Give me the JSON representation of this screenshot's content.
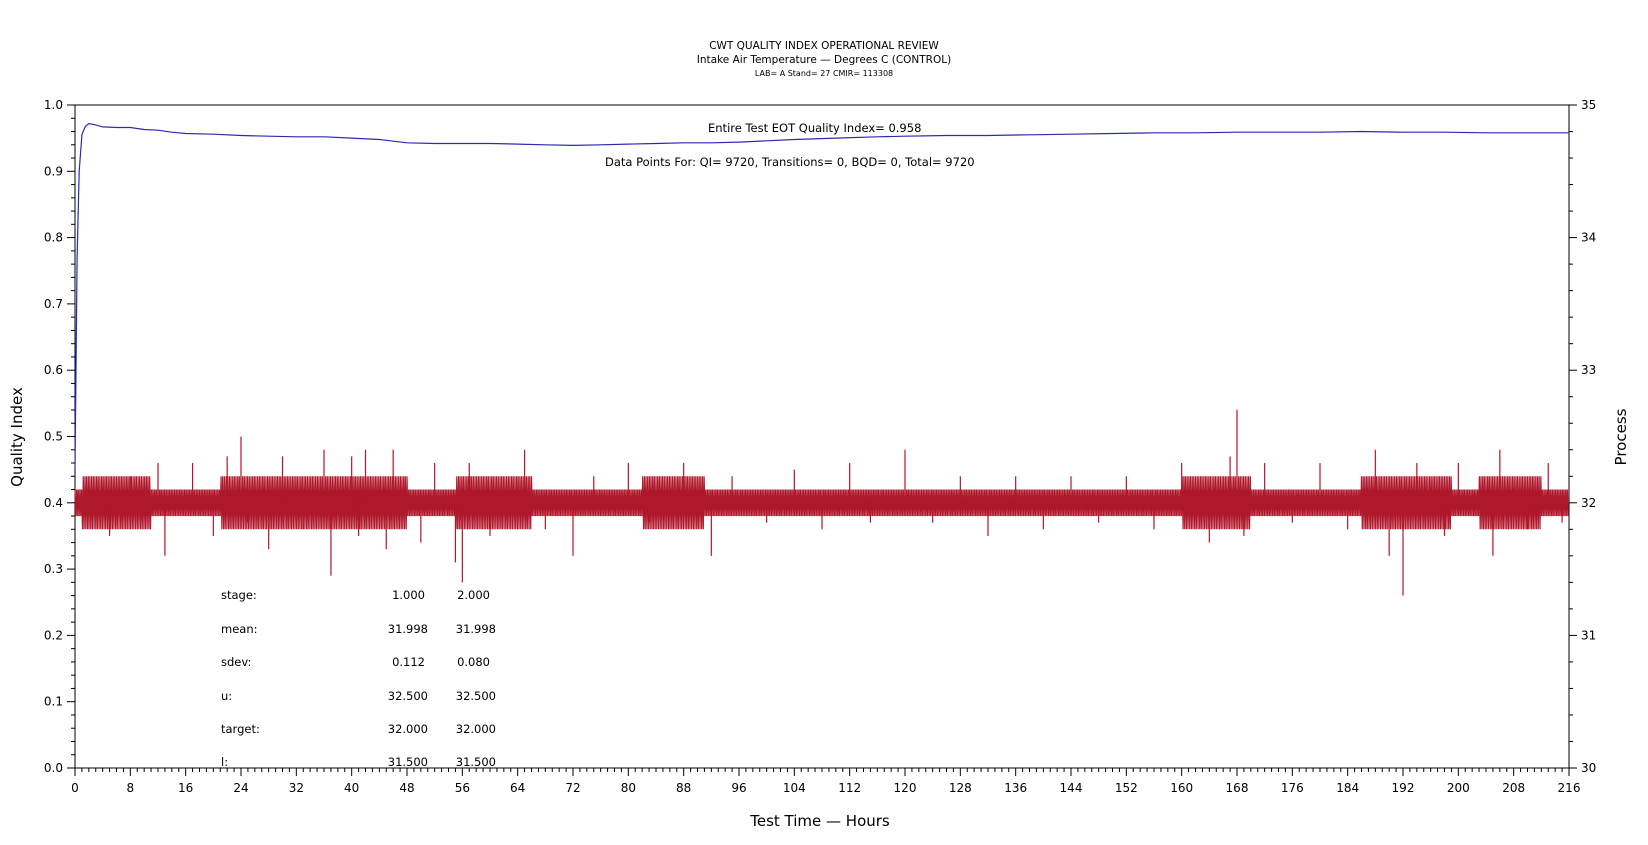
{
  "chart_data": {
    "type": "line",
    "title": "CWT QUALITY INDEX OPERATIONAL REVIEW",
    "subtitle": "Intake Air Temperature — Degrees C (CONTROL)",
    "subtitle2": "LAB= A Stand= 27 CMIR= 113308",
    "xlabel": "Test Time — Hours",
    "ylabel": "Quality Index",
    "y2label": "Process",
    "xlim": [
      0,
      216
    ],
    "ylim": [
      0,
      1
    ],
    "y2lim": [
      30,
      35
    ],
    "grid": false,
    "x_ticks": [
      "0",
      "8",
      "16",
      "24",
      "32",
      "40",
      "48",
      "56",
      "64",
      "72",
      "80",
      "88",
      "96",
      "104",
      "112",
      "120",
      "128",
      "136",
      "144",
      "152",
      "160",
      "168",
      "176",
      "184",
      "192",
      "200",
      "208",
      "216"
    ],
    "y_ticks": [
      "0.0",
      "0.1",
      "0.2",
      "0.3",
      "0.4",
      "0.5",
      "0.6",
      "0.7",
      "0.8",
      "0.9",
      "1.0"
    ],
    "y2_ticks": [
      "30",
      "31",
      "32",
      "33",
      "34",
      "35"
    ],
    "colors": {
      "quality_index": "#2b2bb0",
      "process": "#b0182c"
    },
    "annotations": {
      "eot": "Entire Test EOT Quality Index=   0.958",
      "points": "Data Points For: QI=  9720, Transitions=      0, BQD=      0, Total=  9720"
    },
    "stats": {
      "headers": [
        "stage:",
        "1.000",
        "2.000"
      ],
      "rows": [
        [
          "mean:",
          "31.998",
          "31.998"
        ],
        [
          "sdev:",
          "0.112",
          "0.080"
        ],
        [
          "u:",
          "32.500",
          "32.500"
        ],
        [
          "target:",
          "32.000",
          "32.000"
        ],
        [
          "l:",
          "31.500",
          "31.500"
        ]
      ]
    },
    "series": [
      {
        "axis": "left",
        "x": [
          0,
          0.3,
          0.6,
          1,
          1.5,
          2,
          3,
          4,
          6,
          8,
          10,
          12,
          14,
          16,
          20,
          24,
          28,
          32,
          36,
          40,
          44,
          48,
          52,
          56,
          60,
          64,
          68,
          72,
          76,
          80,
          84,
          88,
          92,
          96,
          100,
          104,
          110,
          116,
          120,
          126,
          132,
          138,
          144,
          150,
          156,
          162,
          168,
          174,
          180,
          186,
          192,
          198,
          204,
          210,
          216
        ],
        "values": [
          0.45,
          0.77,
          0.9,
          0.955,
          0.968,
          0.972,
          0.97,
          0.967,
          0.966,
          0.966,
          0.963,
          0.962,
          0.959,
          0.957,
          0.956,
          0.954,
          0.953,
          0.952,
          0.952,
          0.95,
          0.948,
          0.943,
          0.942,
          0.942,
          0.942,
          0.941,
          0.94,
          0.939,
          0.94,
          0.941,
          0.942,
          0.943,
          0.943,
          0.944,
          0.946,
          0.948,
          0.95,
          0.952,
          0.953,
          0.954,
          0.954,
          0.955,
          0.956,
          0.957,
          0.958,
          0.958,
          0.959,
          0.959,
          0.959,
          0.96,
          0.959,
          0.959,
          0.958,
          0.958,
          0.958
        ]
      },
      {
        "axis": "right",
        "band_upper": 32.1,
        "band_lower": 31.9,
        "wide_band_upper": 32.2,
        "wide_band_lower": 31.8,
        "wide_segments": [
          [
            1,
            11
          ],
          [
            21,
            48
          ],
          [
            55,
            66
          ],
          [
            82,
            91
          ],
          [
            160,
            170
          ],
          [
            186,
            199
          ],
          [
            203,
            212
          ]
        ],
        "spikes": [
          [
            2,
            32.1
          ],
          [
            5,
            31.75
          ],
          [
            8,
            32.2
          ],
          [
            9,
            31.85
          ],
          [
            12,
            32.3
          ],
          [
            13,
            31.6
          ],
          [
            17,
            32.3
          ],
          [
            20,
            31.75
          ],
          [
            22,
            32.35
          ],
          [
            24,
            32.5
          ],
          [
            25,
            31.85
          ],
          [
            28,
            31.65
          ],
          [
            30,
            32.35
          ],
          [
            33,
            31.8
          ],
          [
            36,
            32.4
          ],
          [
            37,
            31.45
          ],
          [
            40,
            32.35
          ],
          [
            41,
            31.75
          ],
          [
            42,
            32.4
          ],
          [
            45,
            31.65
          ],
          [
            46,
            32.4
          ],
          [
            50,
            31.7
          ],
          [
            52,
            32.3
          ],
          [
            55,
            31.55
          ],
          [
            56,
            31.4
          ],
          [
            57,
            32.3
          ],
          [
            60,
            31.75
          ],
          [
            65,
            32.4
          ],
          [
            68,
            31.8
          ],
          [
            72,
            31.6
          ],
          [
            75,
            32.2
          ],
          [
            80,
            32.3
          ],
          [
            83,
            31.85
          ],
          [
            88,
            32.3
          ],
          [
            92,
            31.6
          ],
          [
            95,
            32.2
          ],
          [
            100,
            31.85
          ],
          [
            104,
            32.25
          ],
          [
            108,
            31.8
          ],
          [
            112,
            32.3
          ],
          [
            115,
            31.85
          ],
          [
            120,
            32.4
          ],
          [
            124,
            31.85
          ],
          [
            128,
            32.2
          ],
          [
            132,
            31.75
          ],
          [
            136,
            32.2
          ],
          [
            140,
            31.8
          ],
          [
            144,
            32.2
          ],
          [
            148,
            31.85
          ],
          [
            152,
            32.2
          ],
          [
            156,
            31.8
          ],
          [
            160,
            32.3
          ],
          [
            164,
            31.7
          ],
          [
            167,
            32.35
          ],
          [
            168,
            32.7
          ],
          [
            169,
            31.75
          ],
          [
            172,
            32.3
          ],
          [
            176,
            31.85
          ],
          [
            180,
            32.3
          ],
          [
            184,
            31.8
          ],
          [
            188,
            32.4
          ],
          [
            190,
            31.6
          ],
          [
            192,
            31.3
          ],
          [
            194,
            32.3
          ],
          [
            198,
            31.75
          ],
          [
            200,
            32.3
          ],
          [
            205,
            31.6
          ],
          [
            206,
            32.4
          ],
          [
            210,
            31.8
          ],
          [
            213,
            32.3
          ],
          [
            215,
            31.85
          ]
        ]
      }
    ]
  }
}
